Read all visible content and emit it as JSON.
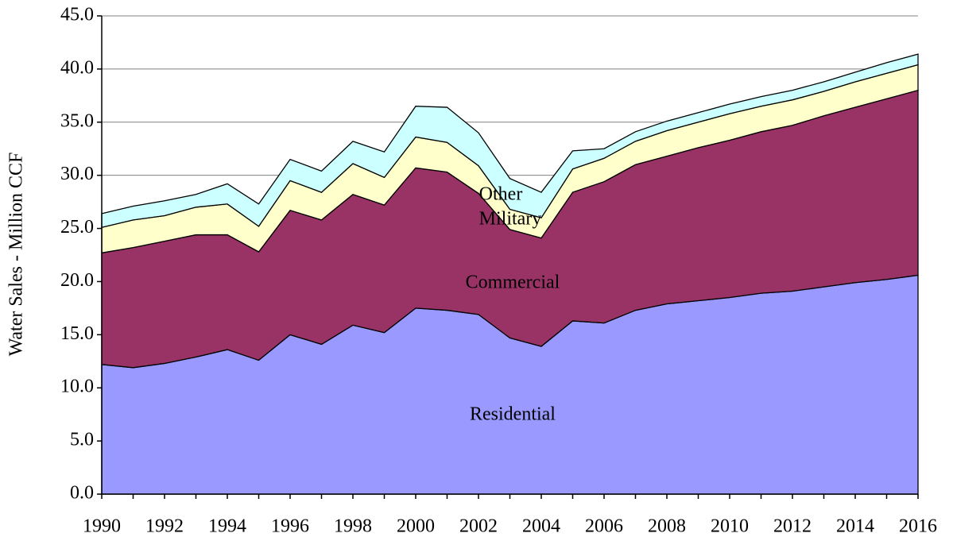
{
  "chart_data": {
    "type": "stacked_area",
    "y_label": "Water Sales - Million CCF",
    "x": [
      1990,
      1991,
      1992,
      1993,
      1994,
      1995,
      1996,
      1997,
      1998,
      1999,
      2000,
      2001,
      2002,
      2003,
      2004,
      2005,
      2006,
      2007,
      2008,
      2009,
      2010,
      2011,
      2012,
      2013,
      2014,
      2015,
      2016
    ],
    "xlim": [
      1990,
      2016
    ],
    "xticks": [
      1990,
      1992,
      1994,
      1996,
      1998,
      2000,
      2002,
      2004,
      2006,
      2008,
      2010,
      2012,
      2014,
      2016
    ],
    "ylim": [
      0,
      45
    ],
    "yticks": [
      {
        "value": 0,
        "label": "0.0"
      },
      {
        "value": 5,
        "label": "5.0"
      },
      {
        "value": 10,
        "label": "10.0"
      },
      {
        "value": 15,
        "label": "15.0"
      },
      {
        "value": 20,
        "label": "20.0"
      },
      {
        "value": 25,
        "label": "25.0"
      },
      {
        "value": 30,
        "label": "30.0"
      },
      {
        "value": 35,
        "label": "35.0"
      },
      {
        "value": 40,
        "label": "40.0"
      },
      {
        "value": 45,
        "label": "45.0"
      }
    ],
    "grid": true,
    "series": [
      {
        "name": "Residential",
        "color": "#9999ff",
        "values": [
          12.2,
          11.9,
          12.3,
          12.9,
          13.6,
          12.6,
          15.0,
          14.1,
          15.9,
          15.2,
          17.5,
          17.3,
          16.9,
          14.7,
          13.9,
          16.3,
          16.1,
          17.3,
          17.9,
          18.2,
          18.5,
          18.9,
          19.1,
          19.5,
          19.9,
          20.2,
          20.6
        ]
      },
      {
        "name": "Commercial",
        "color": "#993366",
        "values": [
          10.5,
          11.3,
          11.5,
          11.5,
          10.8,
          10.2,
          11.7,
          11.7,
          12.3,
          12.0,
          13.2,
          13.0,
          11.4,
          10.2,
          10.2,
          12.1,
          13.3,
          13.7,
          13.9,
          14.4,
          14.8,
          15.2,
          15.6,
          16.1,
          16.5,
          17.0,
          17.4
        ]
      },
      {
        "name": "Military",
        "color": "#ffffcc",
        "values": [
          2.4,
          2.6,
          2.4,
          2.6,
          2.9,
          2.4,
          2.8,
          2.6,
          2.9,
          2.6,
          2.9,
          2.8,
          2.6,
          1.9,
          1.9,
          2.2,
          2.2,
          2.2,
          2.4,
          2.4,
          2.5,
          2.4,
          2.4,
          2.3,
          2.4,
          2.4,
          2.4
        ]
      },
      {
        "name": "Other",
        "color": "#ccffff",
        "values": [
          1.3,
          1.3,
          1.4,
          1.2,
          1.9,
          2.1,
          2.0,
          2.0,
          2.1,
          2.4,
          2.9,
          3.3,
          3.1,
          2.9,
          2.4,
          1.7,
          0.9,
          0.9,
          0.9,
          0.9,
          0.9,
          0.9,
          0.9,
          0.9,
          0.9,
          1.0,
          1.0
        ]
      }
    ]
  }
}
